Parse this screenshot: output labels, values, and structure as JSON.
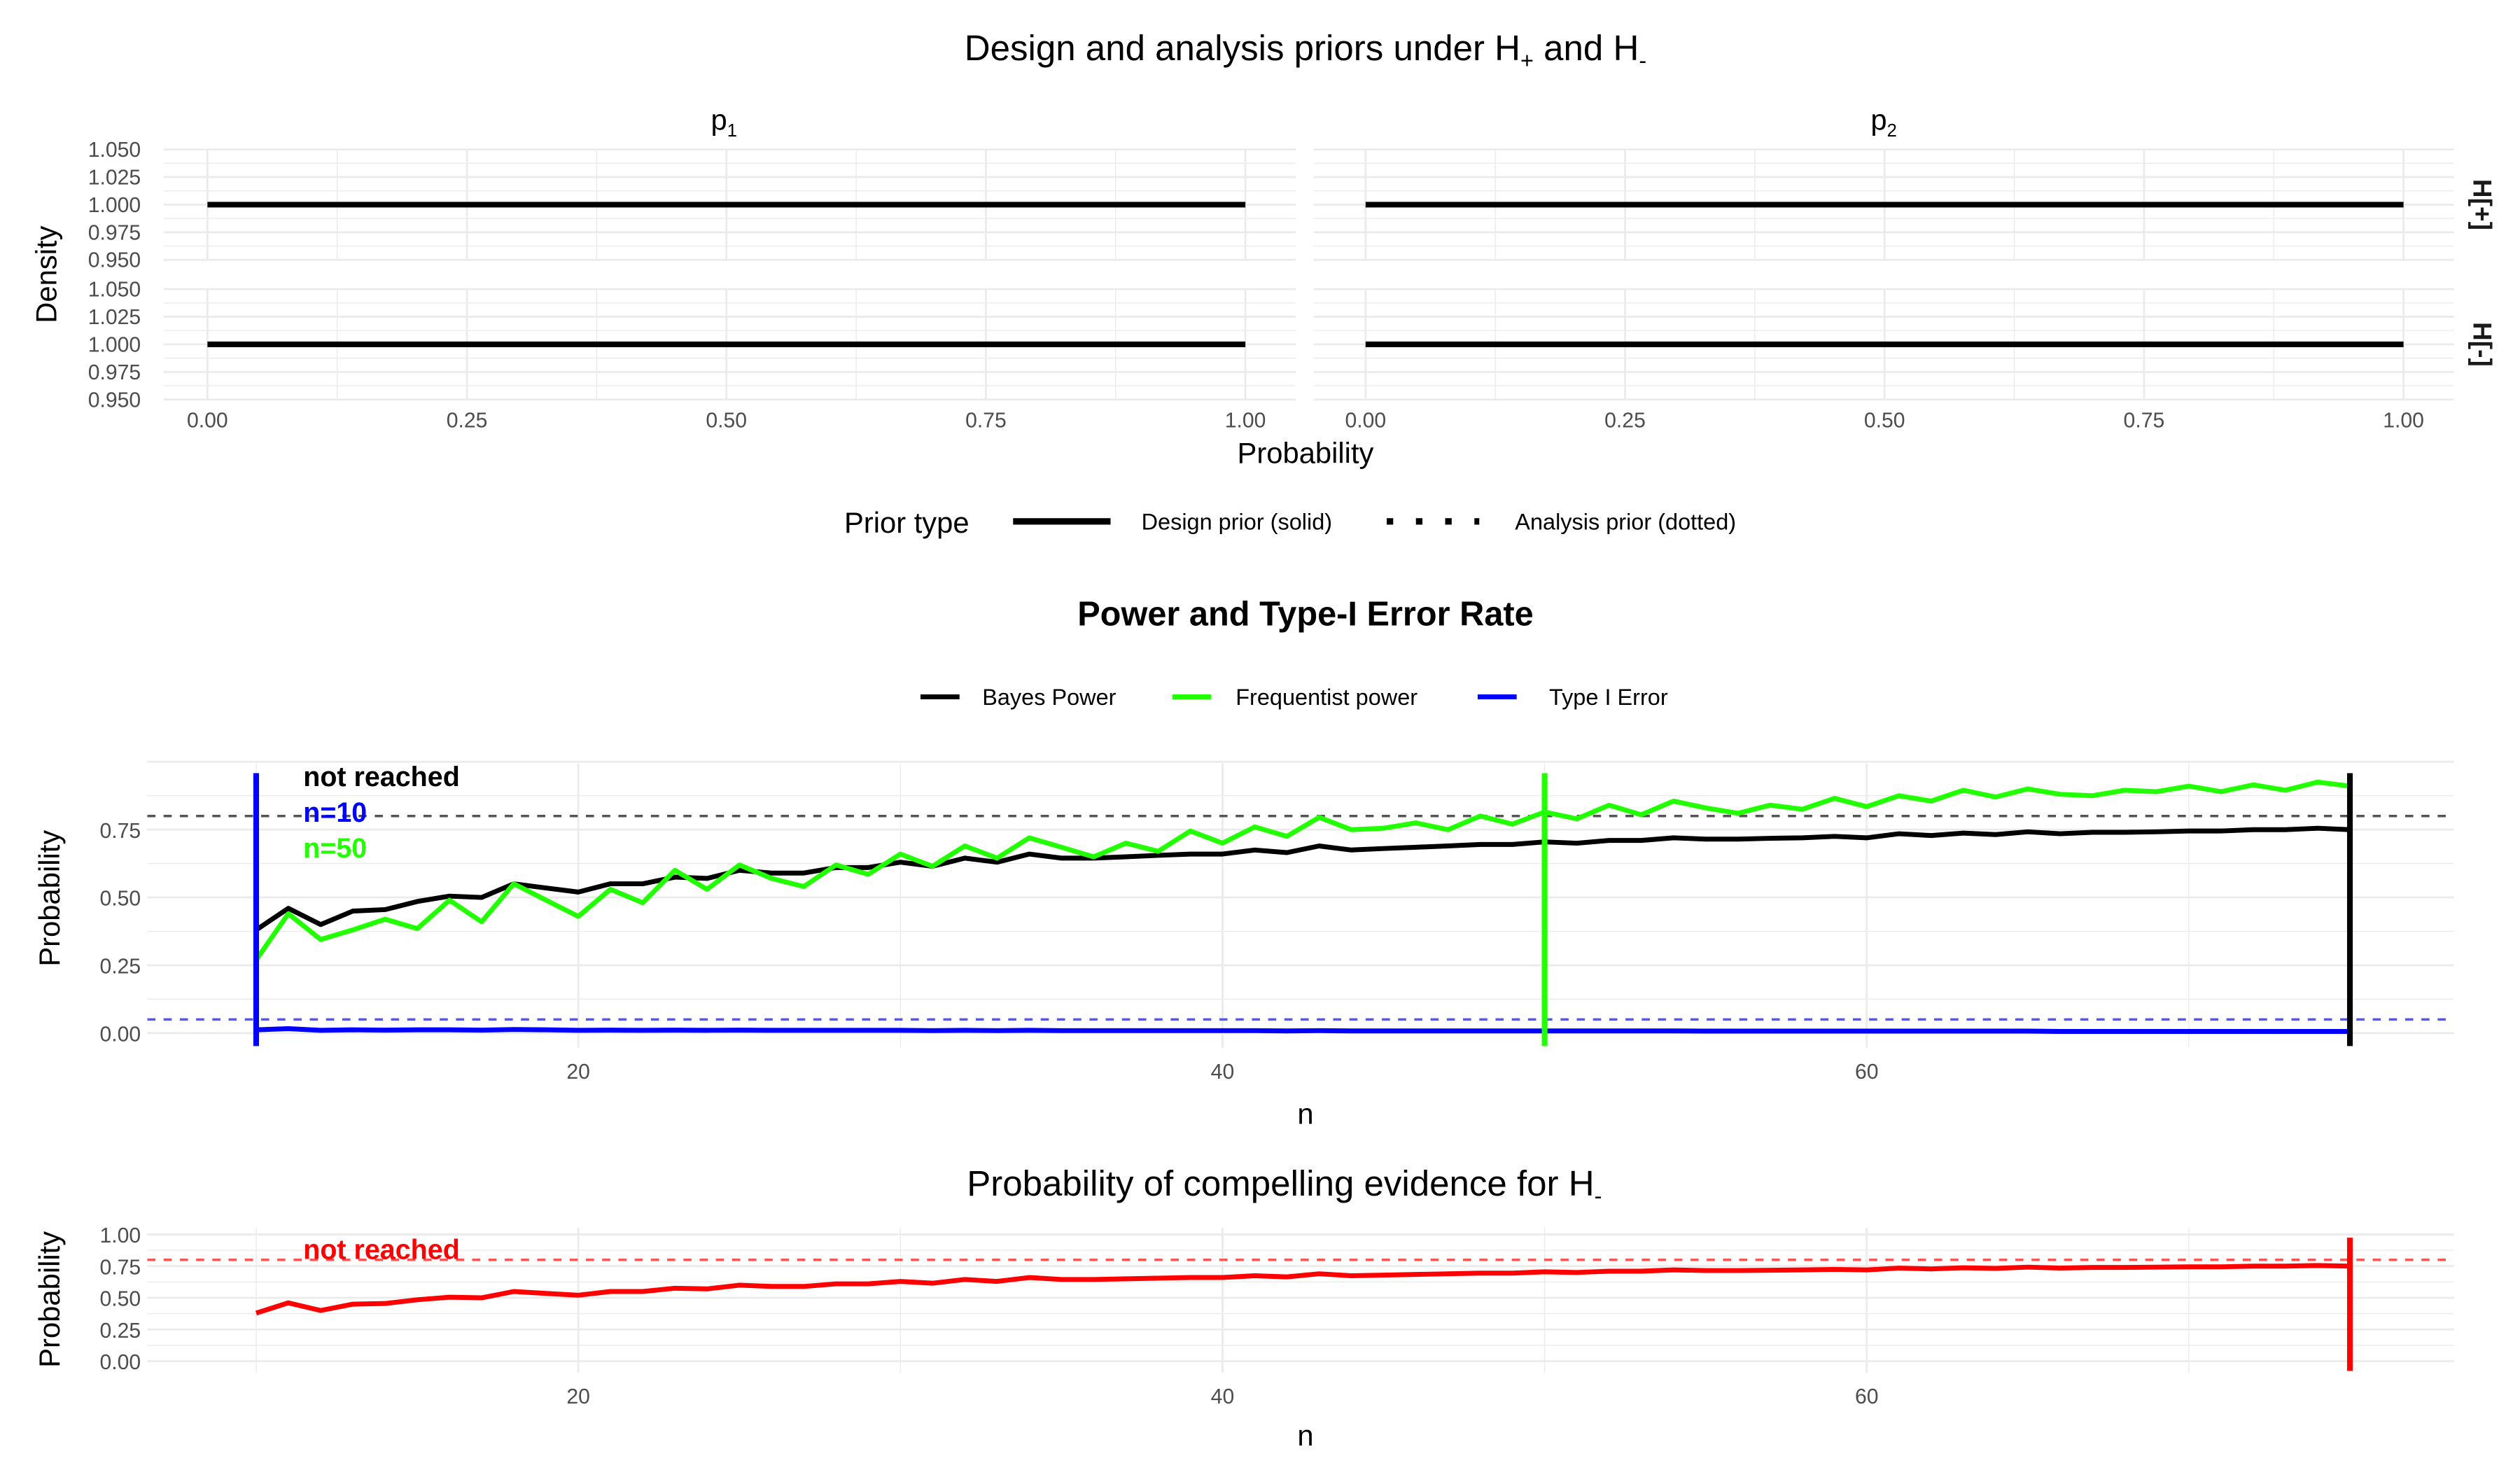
{
  "chart_data": [
    {
      "type": "line",
      "title": "Design and analysis priors under H+ and H-",
      "title_parts": {
        "main": "Design and analysis priors under H",
        "sub1": "+",
        "and": " and H",
        "sub2": "-"
      },
      "facet_columns": [
        {
          "base": "p",
          "sub": "1"
        },
        {
          "base": "p",
          "sub": "2"
        }
      ],
      "facet_rows": [
        "H[+]",
        "H[-]"
      ],
      "xlabel": "Probability",
      "ylabel": "Density",
      "xlim": [
        0,
        1
      ],
      "ylim": [
        0.95,
        1.05
      ],
      "xticks": [
        "0.00",
        "0.25",
        "0.50",
        "0.75",
        "1.00"
      ],
      "yticks": [
        "0.950",
        "0.975",
        "1.000",
        "1.025",
        "1.050"
      ],
      "series": [
        {
          "name": "Design prior (solid)",
          "x": [
            0,
            1
          ],
          "y": [
            1,
            1
          ],
          "color": "#000000",
          "dash": "solid"
        }
      ],
      "legend": {
        "title": "Prior type",
        "position": "bottom",
        "items": [
          "Design prior (solid)",
          "Analysis prior (dotted)"
        ]
      },
      "grid": true
    },
    {
      "type": "line",
      "title": "Power and Type-I Error Rate",
      "xlabel": "n",
      "ylabel": "Probability",
      "xlim": [
        10,
        75
      ],
      "ylim": [
        0,
        1
      ],
      "xticks": [
        20,
        40,
        60
      ],
      "yticks": [
        "0.00",
        "0.25",
        "0.50",
        "0.75"
      ],
      "legend": {
        "position": "top",
        "items": [
          "Bayes Power",
          "Frequentist power",
          "Type I Error"
        ]
      },
      "x": [
        10,
        11,
        12,
        13,
        14,
        15,
        16,
        17,
        18,
        19,
        20,
        21,
        22,
        23,
        24,
        25,
        26,
        27,
        28,
        29,
        30,
        31,
        32,
        33,
        34,
        35,
        36,
        37,
        38,
        39,
        40,
        41,
        42,
        43,
        44,
        45,
        46,
        47,
        48,
        49,
        50,
        51,
        52,
        53,
        54,
        55,
        56,
        57,
        58,
        59,
        60,
        61,
        62,
        63,
        64,
        65,
        66,
        67,
        68,
        69,
        70,
        71,
        72,
        73,
        74,
        75
      ],
      "series": [
        {
          "name": "Bayes Power",
          "color": "#000000",
          "values": [
            0.38,
            0.46,
            0.4,
            0.45,
            0.455,
            0.485,
            0.505,
            0.5,
            0.55,
            0.535,
            0.52,
            0.55,
            0.55,
            0.575,
            0.57,
            0.6,
            0.59,
            0.59,
            0.61,
            0.61,
            0.63,
            0.615,
            0.645,
            0.63,
            0.66,
            0.645,
            0.645,
            0.65,
            0.655,
            0.66,
            0.66,
            0.675,
            0.665,
            0.69,
            0.675,
            0.68,
            0.685,
            0.69,
            0.695,
            0.695,
            0.705,
            0.7,
            0.71,
            0.71,
            0.72,
            0.715,
            0.715,
            0.718,
            0.72,
            0.725,
            0.72,
            0.735,
            0.728,
            0.737,
            0.732,
            0.742,
            0.735,
            0.74,
            0.74,
            0.742,
            0.745,
            0.745,
            0.75,
            0.75,
            0.755,
            0.75
          ]
        },
        {
          "name": "Frequentist power",
          "color": "#22ff00",
          "values": [
            0.27,
            0.44,
            0.345,
            0.38,
            0.42,
            0.385,
            0.49,
            0.41,
            0.55,
            0.49,
            0.43,
            0.53,
            0.48,
            0.6,
            0.53,
            0.62,
            0.57,
            0.54,
            0.62,
            0.585,
            0.66,
            0.615,
            0.69,
            0.645,
            0.72,
            0.685,
            0.65,
            0.7,
            0.67,
            0.745,
            0.7,
            0.76,
            0.725,
            0.795,
            0.75,
            0.755,
            0.775,
            0.75,
            0.8,
            0.77,
            0.815,
            0.79,
            0.84,
            0.805,
            0.855,
            0.83,
            0.81,
            0.84,
            0.825,
            0.865,
            0.835,
            0.875,
            0.855,
            0.895,
            0.87,
            0.9,
            0.88,
            0.875,
            0.895,
            0.89,
            0.91,
            0.89,
            0.915,
            0.895,
            0.925,
            0.91
          ]
        },
        {
          "name": "Type I Error",
          "color": "#0000ff",
          "values": [
            0.012,
            0.016,
            0.01,
            0.012,
            0.011,
            0.012,
            0.012,
            0.011,
            0.013,
            0.012,
            0.01,
            0.011,
            0.01,
            0.011,
            0.01,
            0.011,
            0.01,
            0.01,
            0.01,
            0.01,
            0.01,
            0.009,
            0.01,
            0.009,
            0.01,
            0.009,
            0.009,
            0.009,
            0.009,
            0.009,
            0.009,
            0.009,
            0.008,
            0.009,
            0.008,
            0.008,
            0.008,
            0.008,
            0.008,
            0.008,
            0.008,
            0.008,
            0.008,
            0.008,
            0.008,
            0.007,
            0.007,
            0.007,
            0.007,
            0.007,
            0.007,
            0.007,
            0.007,
            0.007,
            0.007,
            0.007,
            0.006,
            0.006,
            0.006,
            0.006,
            0.006,
            0.006,
            0.006,
            0.006,
            0.006,
            0.006
          ]
        }
      ],
      "hlines": [
        {
          "y": 0.8,
          "color": "#555555"
        },
        {
          "y": 0.05,
          "color": "#5555ff"
        }
      ],
      "vlines": [
        {
          "x": 10,
          "color": "#0000ff"
        },
        {
          "x": 50,
          "color": "#22ff00"
        },
        {
          "x": 75,
          "color": "#000000"
        }
      ],
      "annotations": [
        {
          "text": "not reached",
          "color": "#000000"
        },
        {
          "text": "n=10",
          "color": "#0000ff"
        },
        {
          "text": "n=50",
          "color": "#22ff00"
        }
      ],
      "grid": true
    },
    {
      "type": "line",
      "title": "Probability of compelling evidence for H-",
      "title_parts": {
        "main": "Probability of compelling evidence for H",
        "sub": "-"
      },
      "xlabel": "n",
      "ylabel": "Probability",
      "xlim": [
        10,
        75
      ],
      "ylim": [
        0,
        1
      ],
      "xticks": [
        20,
        40,
        60
      ],
      "yticks": [
        "0.00",
        "0.25",
        "0.50",
        "0.75",
        "1.00"
      ],
      "x": [
        10,
        11,
        12,
        13,
        14,
        15,
        16,
        17,
        18,
        19,
        20,
        21,
        22,
        23,
        24,
        25,
        26,
        27,
        28,
        29,
        30,
        31,
        32,
        33,
        34,
        35,
        36,
        37,
        38,
        39,
        40,
        41,
        42,
        43,
        44,
        45,
        46,
        47,
        48,
        49,
        50,
        51,
        52,
        53,
        54,
        55,
        56,
        57,
        58,
        59,
        60,
        61,
        62,
        63,
        64,
        65,
        66,
        67,
        68,
        69,
        70,
        71,
        72,
        73,
        74,
        75
      ],
      "series": [
        {
          "color": "#ff0000",
          "values": [
            0.38,
            0.46,
            0.4,
            0.45,
            0.455,
            0.485,
            0.505,
            0.5,
            0.55,
            0.535,
            0.52,
            0.55,
            0.55,
            0.575,
            0.57,
            0.6,
            0.59,
            0.59,
            0.61,
            0.61,
            0.63,
            0.615,
            0.645,
            0.63,
            0.66,
            0.645,
            0.645,
            0.65,
            0.655,
            0.66,
            0.66,
            0.675,
            0.665,
            0.69,
            0.675,
            0.68,
            0.685,
            0.69,
            0.695,
            0.695,
            0.705,
            0.7,
            0.71,
            0.71,
            0.72,
            0.715,
            0.715,
            0.718,
            0.72,
            0.725,
            0.72,
            0.735,
            0.728,
            0.737,
            0.732,
            0.742,
            0.735,
            0.74,
            0.74,
            0.742,
            0.745,
            0.745,
            0.75,
            0.75,
            0.755,
            0.75
          ]
        }
      ],
      "hlines": [
        {
          "y": 0.8,
          "color": "#ff5555"
        }
      ],
      "vlines": [
        {
          "x": 75,
          "color": "#ff0000"
        }
      ],
      "annotations": [
        {
          "text": "not reached",
          "color": "#ff0000"
        }
      ],
      "grid": true
    }
  ]
}
